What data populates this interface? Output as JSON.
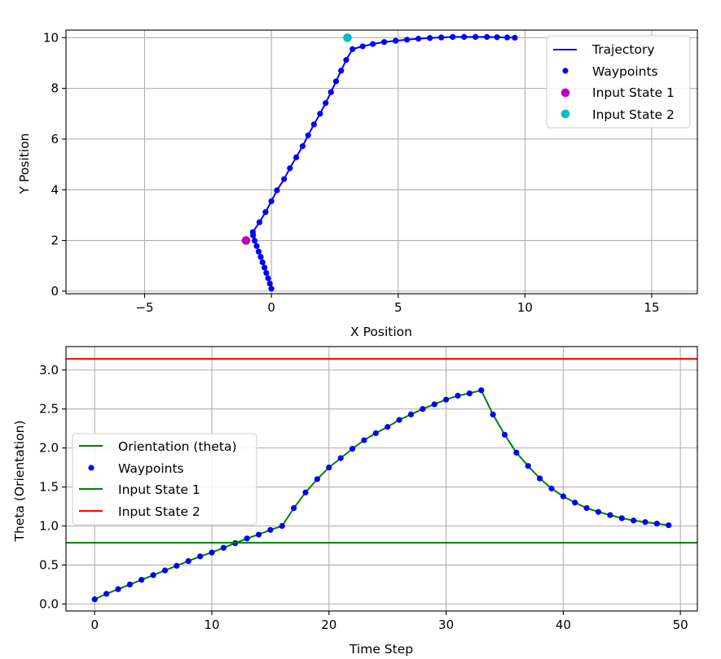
{
  "chart_data": [
    {
      "type": "line",
      "xlabel": "X Position",
      "ylabel": "Y Position",
      "xlim": [
        -8.1,
        16.8
      ],
      "ylim": [
        -0.1,
        10.3
      ],
      "xticks": [
        -5,
        0,
        5,
        10,
        15
      ],
      "xtick_labels": [
        "−5",
        "0",
        "5",
        "10",
        "15"
      ],
      "yticks": [
        0,
        2,
        4,
        6,
        8,
        10
      ],
      "ytick_labels": [
        "0",
        "2",
        "4",
        "6",
        "8",
        "10"
      ],
      "grid": true,
      "legend_placement": "upper-right",
      "series": [
        {
          "name": "Trajectory",
          "kind": "line",
          "color": "#0000ff",
          "x": [
            0.0,
            -0.06,
            -0.13,
            -0.2,
            -0.27,
            -0.35,
            -0.42,
            -0.5,
            -0.58,
            -0.66,
            -0.72,
            -0.73,
            -0.47,
            -0.23,
            0.0,
            0.22,
            0.5,
            0.73,
            0.98,
            1.23,
            1.45,
            1.68,
            1.92,
            2.14,
            2.35,
            2.55,
            2.75,
            2.95,
            3.2,
            3.6,
            4.0,
            4.45,
            4.9,
            5.35,
            5.8,
            6.25,
            6.7,
            7.15,
            7.6,
            8.05,
            8.5,
            8.9,
            9.3,
            9.6
          ],
          "y": [
            0.1,
            0.3,
            0.51,
            0.72,
            0.93,
            1.14,
            1.35,
            1.56,
            1.78,
            1.99,
            2.2,
            2.33,
            2.72,
            3.12,
            3.55,
            3.98,
            4.42,
            4.85,
            5.28,
            5.72,
            6.15,
            6.58,
            7.0,
            7.42,
            7.85,
            8.28,
            8.7,
            9.12,
            9.55,
            9.66,
            9.75,
            9.83,
            9.88,
            9.92,
            9.96,
            9.99,
            10.01,
            10.03,
            10.03,
            10.03,
            10.03,
            10.02,
            10.01,
            10.0
          ]
        },
        {
          "name": "Waypoints",
          "kind": "markers",
          "color": "#0000ff",
          "x": [
            0.0,
            -0.06,
            -0.13,
            -0.2,
            -0.27,
            -0.35,
            -0.42,
            -0.5,
            -0.58,
            -0.66,
            -0.72,
            -0.73,
            -0.47,
            -0.23,
            0.0,
            0.22,
            0.5,
            0.73,
            0.98,
            1.23,
            1.45,
            1.68,
            1.92,
            2.14,
            2.35,
            2.55,
            2.75,
            2.95,
            3.2,
            3.6,
            4.0,
            4.45,
            4.9,
            5.35,
            5.8,
            6.25,
            6.7,
            7.15,
            7.6,
            8.05,
            8.5,
            8.9,
            9.3,
            9.6
          ],
          "y": [
            0.1,
            0.3,
            0.51,
            0.72,
            0.93,
            1.14,
            1.35,
            1.56,
            1.78,
            1.99,
            2.2,
            2.33,
            2.72,
            3.12,
            3.55,
            3.98,
            4.42,
            4.85,
            5.28,
            5.72,
            6.15,
            6.58,
            7.0,
            7.42,
            7.85,
            8.28,
            8.7,
            9.12,
            9.55,
            9.66,
            9.75,
            9.83,
            9.88,
            9.92,
            9.96,
            9.99,
            10.01,
            10.03,
            10.03,
            10.03,
            10.03,
            10.02,
            10.01,
            10.0
          ]
        },
        {
          "name": "Input State 1",
          "kind": "point",
          "color": "#bf00bf",
          "x": [
            -1.0
          ],
          "y": [
            2.0
          ]
        },
        {
          "name": "Input State 2",
          "kind": "point",
          "color": "#00bfbf",
          "x": [
            3.0
          ],
          "y": [
            10.0
          ]
        }
      ]
    },
    {
      "type": "line",
      "xlabel": "Time Step",
      "ylabel": "Theta (Orientation)",
      "xlim": [
        -2.45,
        51.45
      ],
      "ylim": [
        -0.09,
        3.3
      ],
      "xticks": [
        0,
        10,
        20,
        30,
        40,
        50
      ],
      "xtick_labels": [
        "0",
        "10",
        "20",
        "30",
        "40",
        "50"
      ],
      "yticks": [
        0.0,
        0.5,
        1.0,
        1.5,
        2.0,
        2.5,
        3.0
      ],
      "ytick_labels": [
        "0.0",
        "0.5",
        "1.0",
        "1.5",
        "2.0",
        "2.5",
        "3.0"
      ],
      "grid": true,
      "legend_placement": "center-left",
      "series": [
        {
          "name": "Orientation (theta)",
          "kind": "line",
          "color": "#008000",
          "x": [
            0,
            1,
            2,
            3,
            4,
            5,
            6,
            7,
            8,
            9,
            10,
            11,
            12,
            13,
            14,
            15,
            16,
            17,
            18,
            19,
            20,
            21,
            22,
            23,
            24,
            25,
            26,
            27,
            28,
            29,
            30,
            31,
            32,
            33,
            34,
            35,
            36,
            37,
            38,
            39,
            40,
            41,
            42,
            43,
            44,
            45,
            46,
            47,
            48,
            49
          ],
          "y": [
            0.06,
            0.13,
            0.19,
            0.25,
            0.31,
            0.37,
            0.43,
            0.49,
            0.55,
            0.61,
            0.66,
            0.72,
            0.78,
            0.84,
            0.89,
            0.95,
            1.0,
            1.23,
            1.43,
            1.6,
            1.75,
            1.87,
            1.99,
            2.1,
            2.19,
            2.27,
            2.36,
            2.43,
            2.5,
            2.56,
            2.62,
            2.67,
            2.7,
            2.74,
            2.43,
            2.17,
            1.94,
            1.77,
            1.61,
            1.48,
            1.38,
            1.3,
            1.23,
            1.18,
            1.14,
            1.1,
            1.07,
            1.05,
            1.03,
            1.01
          ]
        },
        {
          "name": "Waypoints",
          "kind": "markers",
          "color": "#0000ff",
          "x": [
            0,
            1,
            2,
            3,
            4,
            5,
            6,
            7,
            8,
            9,
            10,
            11,
            12,
            13,
            14,
            15,
            16,
            17,
            18,
            19,
            20,
            21,
            22,
            23,
            24,
            25,
            26,
            27,
            28,
            29,
            30,
            31,
            32,
            33,
            34,
            35,
            36,
            37,
            38,
            39,
            40,
            41,
            42,
            43,
            44,
            45,
            46,
            47,
            48,
            49
          ],
          "y": [
            0.06,
            0.13,
            0.19,
            0.25,
            0.31,
            0.37,
            0.43,
            0.49,
            0.55,
            0.61,
            0.66,
            0.72,
            0.78,
            0.84,
            0.89,
            0.95,
            1.0,
            1.23,
            1.43,
            1.6,
            1.75,
            1.87,
            1.99,
            2.1,
            2.19,
            2.27,
            2.36,
            2.43,
            2.5,
            2.56,
            2.62,
            2.67,
            2.7,
            2.74,
            2.43,
            2.17,
            1.94,
            1.77,
            1.61,
            1.48,
            1.38,
            1.3,
            1.23,
            1.18,
            1.14,
            1.1,
            1.07,
            1.05,
            1.03,
            1.01
          ]
        },
        {
          "name": "Input State 1",
          "kind": "hline",
          "color": "#008000",
          "y": [
            0.785
          ]
        },
        {
          "name": "Input State 2",
          "kind": "hline",
          "color": "#ff0000",
          "y": [
            3.14159
          ]
        }
      ]
    }
  ]
}
